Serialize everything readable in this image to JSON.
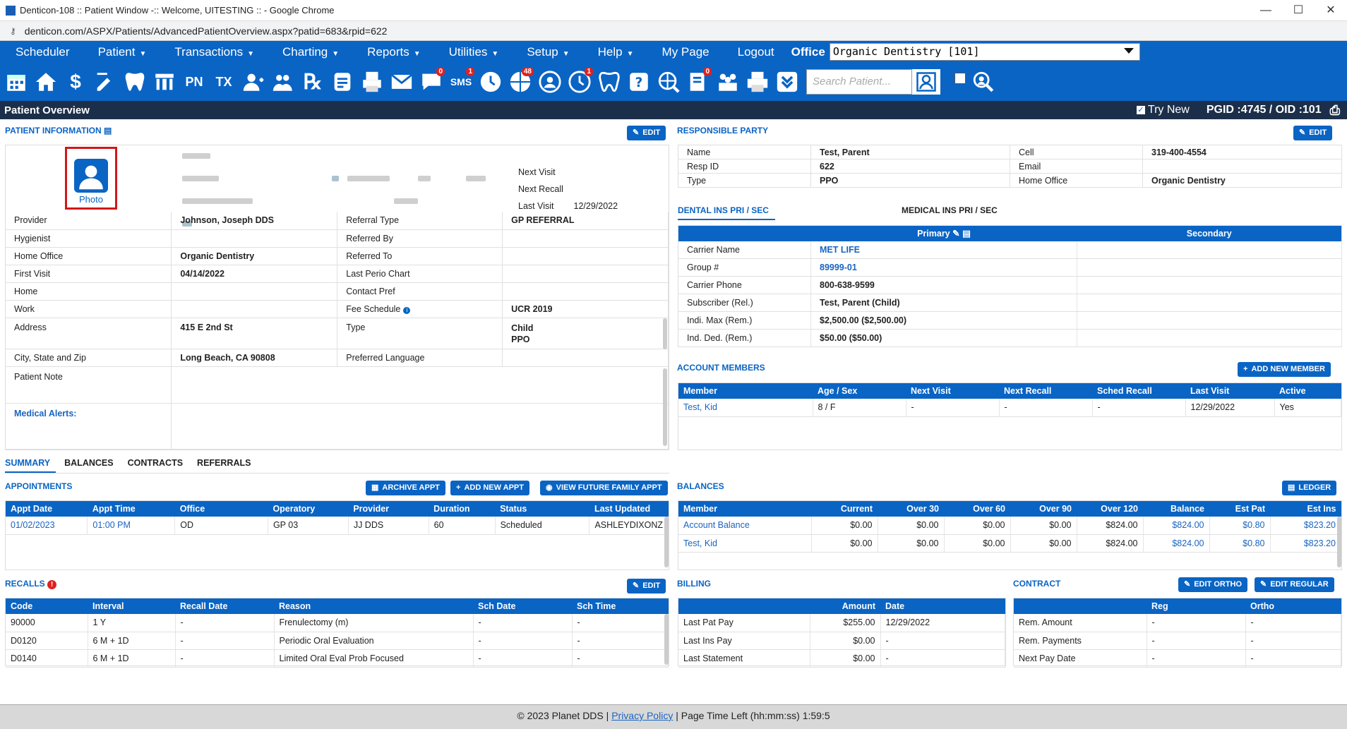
{
  "browser": {
    "title": "Denticon-108 :: Patient Window -:: Welcome, UITESTING :: - Google Chrome",
    "url": "denticon.com/ASPX/Patients/AdvancedPatientOverview.aspx?patid=683&rpid=622"
  },
  "menu": {
    "items": [
      {
        "label": "Scheduler",
        "arrow": ""
      },
      {
        "label": "Patient",
        "arrow": "▼"
      },
      {
        "label": "Transactions",
        "arrow": "▼"
      },
      {
        "label": "Charting",
        "arrow": "▼"
      },
      {
        "label": "Reports",
        "arrow": "▼"
      },
      {
        "label": "Utilities",
        "arrow": "▼"
      },
      {
        "label": "Setup",
        "arrow": "▼"
      },
      {
        "label": "Help",
        "arrow": "▼"
      },
      {
        "label": "My Page",
        "arrow": ""
      },
      {
        "label": "Logout",
        "arrow": ""
      }
    ],
    "office_label": "Office",
    "office_value": "Organic Dentistry [101]"
  },
  "toolbar": {
    "search_placeholder": "Search Patient...",
    "badges": {
      "sms": "1",
      "globe": "48",
      "clock2": "1",
      "notes": "0",
      "chat": "0"
    },
    "glyphs": {
      "pn": "PN",
      "tx": "TX",
      "rx": "℞"
    }
  },
  "overview": {
    "title": "Patient Overview",
    "try_new": "Try New",
    "ids": "PGID :4745 / OID :101"
  },
  "patient": {
    "section_title": "PATIENT INFORMATION",
    "edit": "EDIT",
    "photo_label": "Photo",
    "next_visit_label": "Next Visit",
    "next_recall_label": "Next Recall",
    "last_visit_label": "Last Visit",
    "last_visit": "12/29/2022",
    "rows": [
      [
        "Provider",
        "Johnson, Joseph DDS",
        "Referral Type",
        "GP REFERRAL"
      ],
      [
        "Hygienist",
        "",
        "Referred By",
        ""
      ],
      [
        "Home Office",
        "Organic Dentistry",
        "Referred To",
        ""
      ],
      [
        "First Visit",
        "04/14/2022",
        "Last Perio Chart",
        ""
      ],
      [
        "Home",
        "",
        "Contact Pref",
        ""
      ],
      [
        "Work",
        "",
        "Fee Schedule",
        "UCR 2019"
      ]
    ],
    "address_label": "Address",
    "address": "415 E 2nd St",
    "type_label": "Type",
    "type_1": "Child",
    "type_2": "PPO",
    "city_label": "City, State and Zip",
    "city": "Long Beach, CA 90808",
    "lang_label": "Preferred Language",
    "note_label": "Patient Note",
    "alerts_label": "Medical Alerts:"
  },
  "rp": {
    "section_title": "RESPONSIBLE PARTY",
    "edit": "EDIT",
    "rows": [
      [
        "Name",
        "Test, Parent",
        "Cell",
        "319-400-4554"
      ],
      [
        "Resp ID",
        "622",
        "Email",
        ""
      ],
      [
        "Type",
        "PPO",
        "Home Office",
        "Organic Dentistry"
      ]
    ]
  },
  "ins": {
    "tab_dental": "DENTAL INS PRI / SEC",
    "tab_medical": "MEDICAL INS PRI / SEC",
    "primary": "Primary",
    "secondary": "Secondary",
    "rows": [
      [
        "Carrier Name",
        "MET LIFE"
      ],
      [
        "Group #",
        "89999-01"
      ],
      [
        "Carrier Phone",
        "800-638-9599"
      ],
      [
        "Subscriber (Rel.)",
        "Test, Parent (Child)"
      ],
      [
        "Indi. Max (Rem.)",
        "$2,500.00 ($2,500.00)"
      ],
      [
        "Ind. Ded. (Rem.)",
        "$50.00 ($50.00)"
      ]
    ]
  },
  "members": {
    "section_title": "ACCOUNT MEMBERS",
    "add": "ADD NEW MEMBER",
    "headers": [
      "Member",
      "Age / Sex",
      "Next Visit",
      "Next Recall",
      "Sched Recall",
      "Last Visit",
      "Active"
    ],
    "rows": [
      [
        "Test, Kid",
        "8 / F",
        "-",
        "-",
        "-",
        "12/29/2022",
        "Yes"
      ]
    ]
  },
  "tabs": [
    "SUMMARY",
    "BALANCES",
    "CONTRACTS",
    "REFERRALS"
  ],
  "appts": {
    "section_title": "APPOINTMENTS",
    "archive": "ARCHIVE APPT",
    "add": "ADD NEW APPT",
    "future": "VIEW FUTURE FAMILY APPT",
    "headers": [
      "Appt Date",
      "Appt Time",
      "Office",
      "Operatory",
      "Provider",
      "Duration",
      "Status",
      "Last Updated"
    ],
    "rows": [
      [
        "01/02/2023",
        "01:00 PM",
        "OD",
        "GP 03",
        "JJ DDS",
        "60",
        "Scheduled",
        "ASHLEYDIXONZ"
      ]
    ]
  },
  "balances": {
    "section_title": "BALANCES",
    "ledger": "LEDGER",
    "headers": [
      "Member",
      "Current",
      "Over 30",
      "Over 60",
      "Over 90",
      "Over 120",
      "Balance",
      "Est Pat",
      "Est Ins"
    ],
    "rows": [
      [
        "Account Balance",
        "$0.00",
        "$0.00",
        "$0.00",
        "$0.00",
        "$824.00",
        "$824.00",
        "$0.80",
        "$823.20"
      ],
      [
        "Test, Kid",
        "$0.00",
        "$0.00",
        "$0.00",
        "$0.00",
        "$824.00",
        "$824.00",
        "$0.80",
        "$823.20"
      ]
    ]
  },
  "recalls": {
    "section_title": "RECALLS",
    "alert": "!",
    "edit": "EDIT",
    "headers": [
      "Code",
      "Interval",
      "Recall Date",
      "Reason",
      "Sch Date",
      "Sch Time"
    ],
    "rows": [
      [
        "90000",
        "1 Y",
        "-",
        "Frenulectomy (m)",
        "-",
        "-"
      ],
      [
        "D0120",
        "6 M + 1D",
        "-",
        "Periodic Oral Evaluation",
        "-",
        "-"
      ],
      [
        "D0140",
        "6 M + 1D",
        "-",
        "Limited Oral Eval Prob Focused",
        "-",
        "-"
      ]
    ]
  },
  "billing": {
    "section_title": "BILLING",
    "headers": [
      "",
      "Amount",
      "Date"
    ],
    "rows": [
      [
        "Last Pat Pay",
        "$255.00",
        "12/29/2022"
      ],
      [
        "Last Ins Pay",
        "$0.00",
        "-"
      ],
      [
        "Last Statement",
        "$0.00",
        "-"
      ]
    ]
  },
  "contract": {
    "section_title": "CONTRACT",
    "edit_ortho": "EDIT ORTHO",
    "edit_regular": "EDIT REGULAR",
    "headers": [
      "",
      "Reg",
      "Ortho"
    ],
    "rows": [
      [
        "Rem. Amount",
        "-",
        "-"
      ],
      [
        "Rem. Payments",
        "-",
        "-"
      ],
      [
        "Next Pay Date",
        "-",
        "-"
      ]
    ]
  },
  "footer": {
    "copy": "© 2023 Planet DDS | ",
    "privacy": "Privacy Policy",
    "rest": " |  Page Time Left (hh:mm:ss) 1:59:5"
  }
}
